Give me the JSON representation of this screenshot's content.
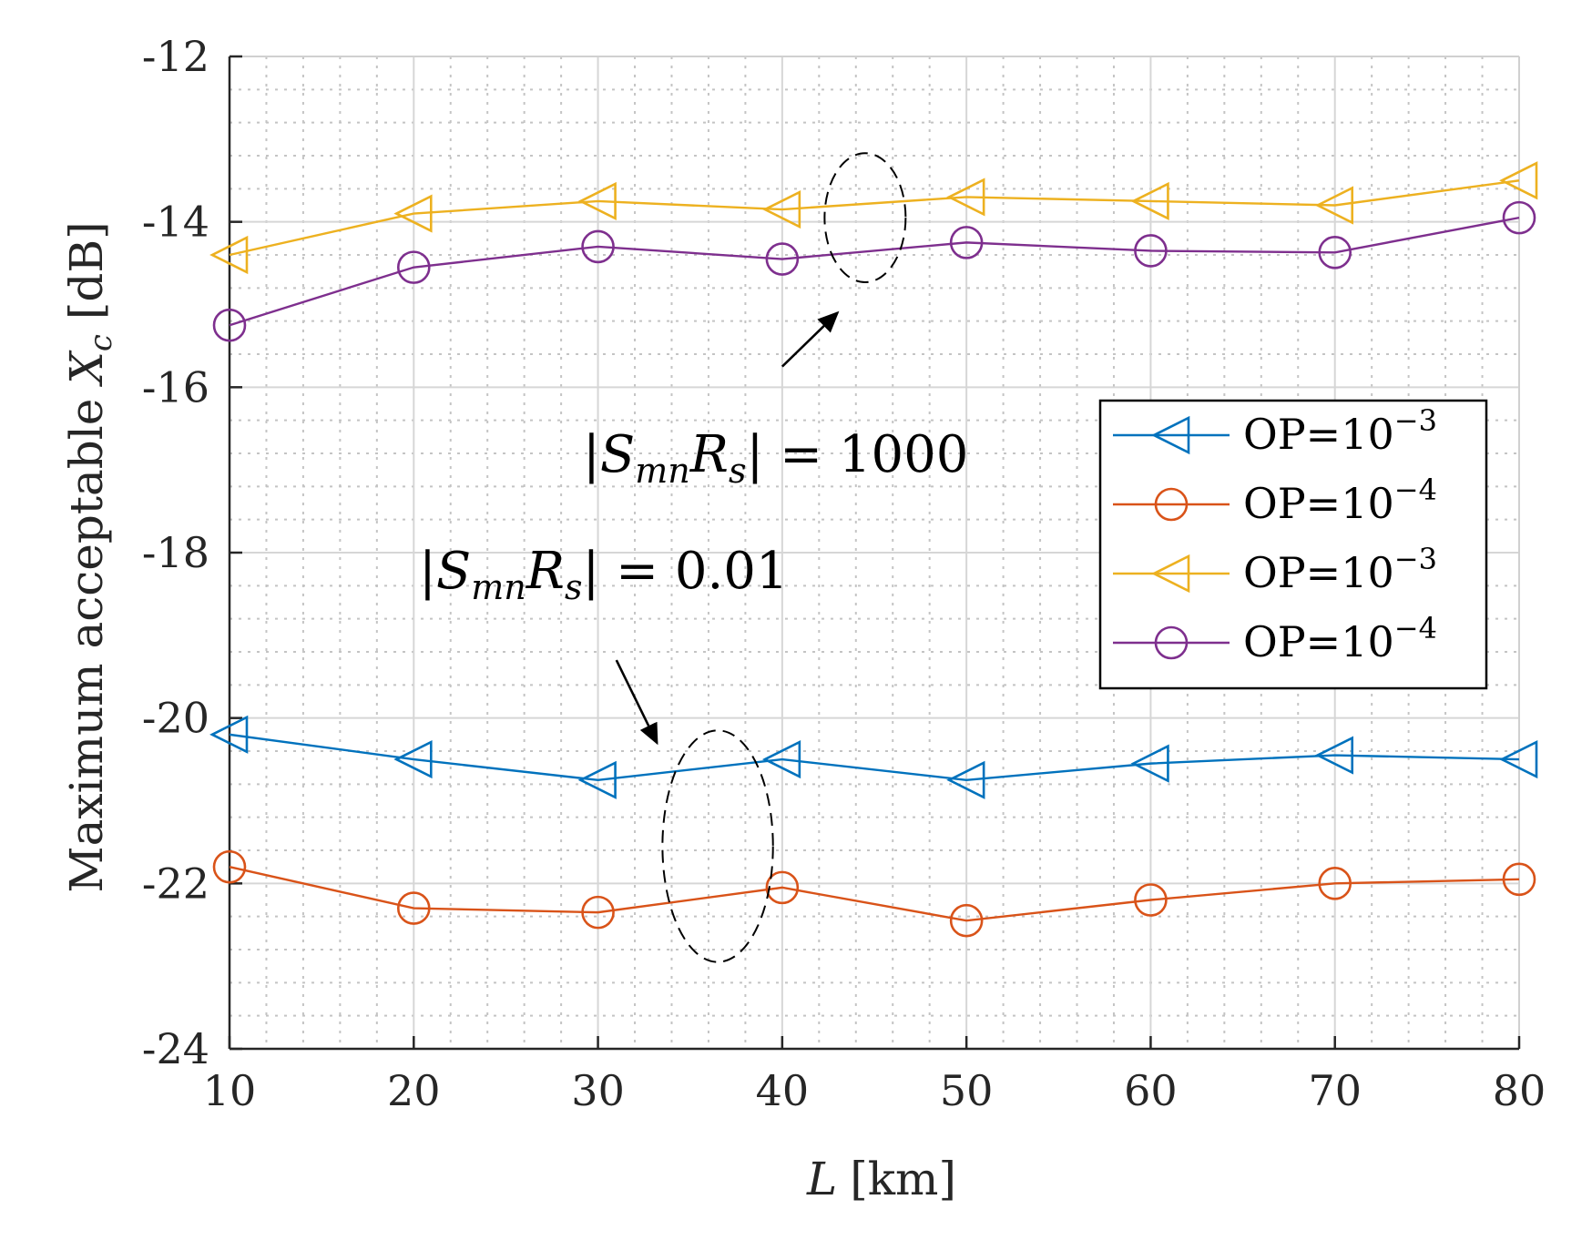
{
  "chart_data": {
    "type": "line",
    "title": "",
    "xlabel": "L [km]",
    "xlabel_var": "L",
    "xlabel_unit": "[km]",
    "ylabel": "Maximum acceptable X_c [dB]",
    "ylabel_prefix": "Maximum acceptable ",
    "ylabel_var": "X",
    "ylabel_sub": "c",
    "ylabel_unit": " [dB]",
    "xlim": [
      10,
      80
    ],
    "ylim": [
      -24,
      -12
    ],
    "xticks": [
      10,
      20,
      30,
      40,
      50,
      60,
      70,
      80
    ],
    "yticks": [
      -24,
      -22,
      -20,
      -18,
      -16,
      -14,
      -12
    ],
    "grid": true,
    "minor_grid": true,
    "legend_position": "right, middle-upper",
    "x": [
      10,
      20,
      30,
      40,
      50,
      60,
      70,
      80
    ],
    "series": [
      {
        "name": "OP=10^-3",
        "label_base": "OP=10",
        "label_exp": "−3",
        "color": "#0072BD",
        "marker": "triangle-left",
        "values": [
          -20.2,
          -20.5,
          -20.75,
          -20.5,
          -20.75,
          -20.55,
          -20.45,
          -20.5
        ]
      },
      {
        "name": "OP=10^-4",
        "label_base": "OP=10",
        "label_exp": "−4",
        "color": "#D95319",
        "marker": "circle",
        "values": [
          -21.8,
          -22.3,
          -22.35,
          -22.05,
          -22.45,
          -22.2,
          -22.0,
          -21.95
        ]
      },
      {
        "name": "OP=10^-3",
        "label_base": "OP=10",
        "label_exp": "−3",
        "color": "#EDB120",
        "marker": "triangle-left",
        "values": [
          -14.4,
          -13.9,
          -13.75,
          -13.85,
          -13.7,
          -13.75,
          -13.8,
          -13.5
        ]
      },
      {
        "name": "OP=10^-4",
        "label_base": "OP=10",
        "label_exp": "−4",
        "color": "#7E2F8E",
        "marker": "circle",
        "values": [
          -15.25,
          -14.55,
          -14.3,
          -14.45,
          -14.25,
          -14.35,
          -14.37,
          -13.95
        ]
      }
    ],
    "annotations": [
      {
        "text": "|S_mn R_s| = 1000",
        "abs_open": "|",
        "S": "S",
        "S_sub": "mn",
        "R": "R",
        "R_sub": "s",
        "abs_close": "|",
        "rhs": " = 1000",
        "ellipse_center": [
          44.5,
          -13.95
        ],
        "ellipse_radii": [
          2.2,
          0.78
        ],
        "arrow_from": [
          40.0,
          -15.75
        ],
        "arrow_to": [
          43.0,
          -15.1
        ]
      },
      {
        "text": "|S_mn R_s| = 0.01",
        "abs_open": "|",
        "S": "S",
        "S_sub": "mn",
        "R": "R",
        "R_sub": "s",
        "abs_close": "|",
        "rhs": " = 0.01",
        "ellipse_center": [
          36.5,
          -21.55
        ],
        "ellipse_radii": [
          3.0,
          1.4
        ],
        "arrow_from": [
          31.0,
          -19.3
        ],
        "arrow_to": [
          33.2,
          -20.3
        ]
      }
    ]
  }
}
